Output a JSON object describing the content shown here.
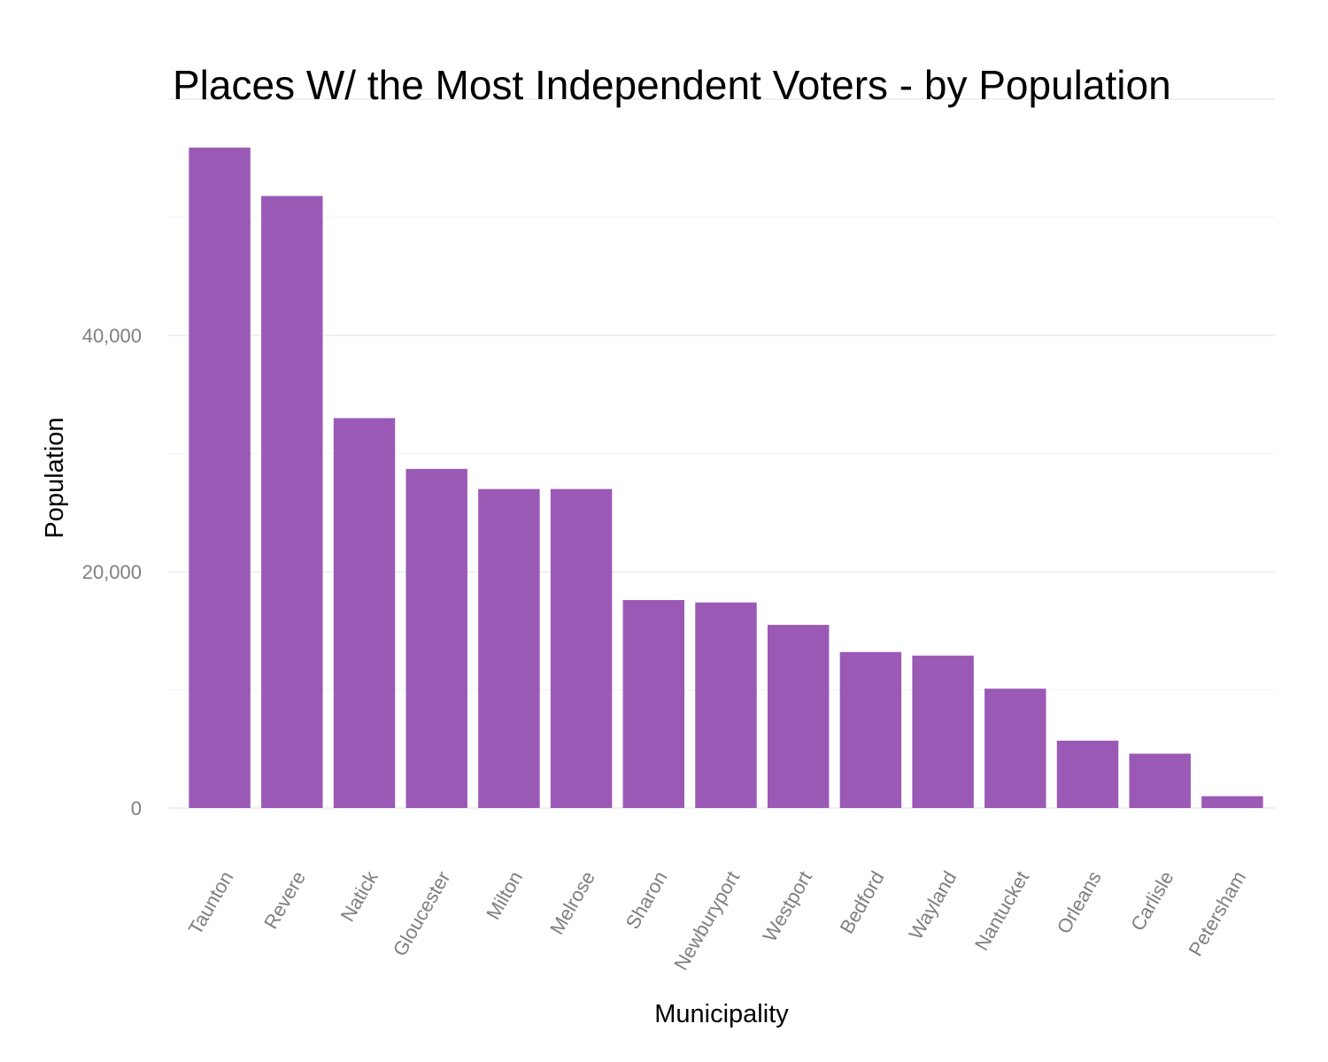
{
  "chart_data": {
    "type": "bar",
    "title": "Places W/ the Most Independent Voters - by Population",
    "xlabel": "Municipality",
    "ylabel": "Population",
    "categories": [
      "Taunton",
      "Revere",
      "Natick",
      "Gloucester",
      "Milton",
      "Melrose",
      "Sharon",
      "Newburyport",
      "Westport",
      "Bedford",
      "Wayland",
      "Nantucket",
      "Orleans",
      "Carlisle",
      "Petersham"
    ],
    "values": [
      55900,
      51800,
      33000,
      28700,
      27000,
      27000,
      17600,
      17400,
      15500,
      13200,
      12900,
      10100,
      5700,
      4600,
      1000
    ],
    "yticks": [
      0,
      20000,
      40000
    ],
    "ytick_labels": [
      "0",
      "20,000",
      "40,000"
    ],
    "ylim": [
      0,
      60000
    ],
    "bar_color": "#9b59b6",
    "grid": true,
    "legend": "none"
  }
}
